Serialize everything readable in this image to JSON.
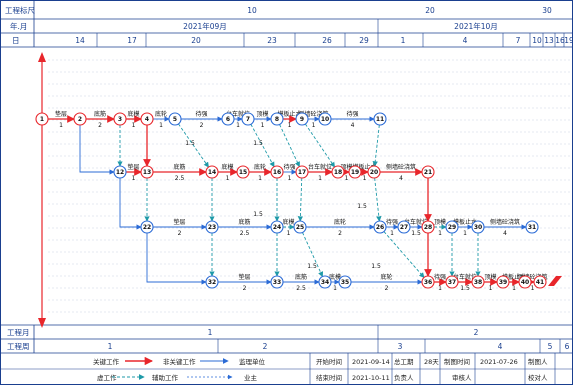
{
  "scale": {
    "label_ruler": "工程标尺",
    "label_year_month": "年.月",
    "label_day": "日",
    "ruler_marks": [
      "10",
      "20",
      "30"
    ],
    "months": [
      "2021年09月",
      "2021年10月"
    ],
    "days": [
      "14",
      "17",
      "20",
      "23",
      "26",
      "29",
      "1",
      "4",
      "7",
      "10",
      "13",
      "16",
      "19"
    ]
  },
  "bottom": {
    "label_month": "工程月",
    "label_week": "工程周",
    "months": [
      "1",
      "2"
    ],
    "weeks": [
      "1",
      "2",
      "3",
      "4",
      "5",
      "6"
    ]
  },
  "legend": {
    "critical": "关键工作",
    "noncritical": "非关键工作",
    "supervisor": "监理单位",
    "virtual": "虚工作",
    "auxiliary": "辅助工作",
    "owner": "业主"
  },
  "info": {
    "start_label": "开始时间",
    "start_value": "2021-09-14",
    "duration_label": "总工期",
    "duration_value": "28天",
    "draw_time_label": "制图时间",
    "draw_time_value": "2021-07-26",
    "drawer_label": "制图人",
    "end_label": "结束时间",
    "end_value": "2021-10-11",
    "owner_label": "负责人",
    "reviewer_label": "审核人",
    "checker_label": "校对人"
  },
  "colors": {
    "critical": "#e8262b",
    "noncritical": "#2b6bd6",
    "auxiliary": "#1e9aa8",
    "grid": "#1a3f8f"
  },
  "network": {
    "nodes": [
      "1",
      "2",
      "3",
      "4",
      "5",
      "6",
      "7",
      "8",
      "9",
      "10",
      "11",
      "12",
      "13",
      "14",
      "15",
      "16",
      "17",
      "18",
      "19",
      "20",
      "21",
      "22",
      "23",
      "24",
      "25",
      "26",
      "27",
      "28",
      "29",
      "30",
      "31",
      "32",
      "33",
      "34",
      "35",
      "36",
      "37",
      "38",
      "39",
      "40",
      "41"
    ],
    "activities": {
      "a1_2": {
        "name": "垫层",
        "dur": "1"
      },
      "a2_3": {
        "name": "底筋",
        "dur": "2"
      },
      "a3_4": {
        "name": "底模",
        "dur": "1"
      },
      "a4_5": {
        "name": "底轮",
        "dur": "1"
      },
      "a5_6": {
        "name": "待强",
        "dur": "2"
      },
      "a6_7": {
        "name": "台车就位",
        "dur": "1"
      },
      "a7_8": {
        "name": "顶模",
        "dur": "1"
      },
      "a8_9": {
        "name": "模板止水",
        "dur": "1"
      },
      "a9_10": {
        "name": "侧墙砼浇筑",
        "dur": "1"
      },
      "a10_11": {
        "name": "待强",
        "dur": "4"
      },
      "a12_13": {
        "name": "垫层",
        "dur": "1"
      },
      "a13_14": {
        "name": "底筋",
        "dur": "2.5"
      },
      "a14_15": {
        "name": "底模",
        "dur": "1"
      },
      "a15_16": {
        "name": "底轮",
        "dur": "1"
      },
      "a16_17": {
        "name": "待强",
        "dur": "1"
      },
      "a17_18": {
        "name": "台车就位",
        "dur": "1"
      },
      "a18_19": {
        "name": "顶模",
        "dur": "1"
      },
      "a19_20": {
        "name": "模板止水",
        "dur": "1"
      },
      "a20_21": {
        "name": "侧墙砼浇筑",
        "dur": "4"
      },
      "a22_23": {
        "name": "垫层",
        "dur": "2"
      },
      "a23_24": {
        "name": "底筋",
        "dur": "2.5"
      },
      "a24_25": {
        "name": "底模",
        "dur": "1"
      },
      "a25_26": {
        "name": "底轮",
        "dur": "2"
      },
      "a26_27": {
        "name": "待强",
        "dur": "1"
      },
      "a27_28": {
        "name": "台车就位",
        "dur": "1.5"
      },
      "a28_29": {
        "name": "顶模",
        "dur": "1"
      },
      "a29_30": {
        "name": "模板止水",
        "dur": "1"
      },
      "a30_31": {
        "name": "侧墙砼浇筑",
        "dur": "4"
      },
      "a32_33": {
        "name": "垫层",
        "dur": "2"
      },
      "a33_34": {
        "name": "底筋",
        "dur": "2.5"
      },
      "a34_35": {
        "name": "底模",
        "dur": "1"
      },
      "a35_36": {
        "name": "底轮",
        "dur": "2"
      },
      "a36_37": {
        "name": "待强",
        "dur": "1"
      },
      "a37_38": {
        "name": "台车就位",
        "dur": "1.5"
      },
      "a38_39": {
        "name": "顶模",
        "dur": "1"
      },
      "a39_40": {
        "name": "模板止水",
        "dur": "1"
      },
      "a40_41": {
        "name": "侧墙砼浇筑",
        "dur": "1"
      },
      "a41_end": {
        "name": "待强",
        "dur": ""
      }
    },
    "floats": [
      "1.5",
      "1.5",
      "1.5",
      "1.5",
      "1.5",
      "1.5"
    ]
  }
}
